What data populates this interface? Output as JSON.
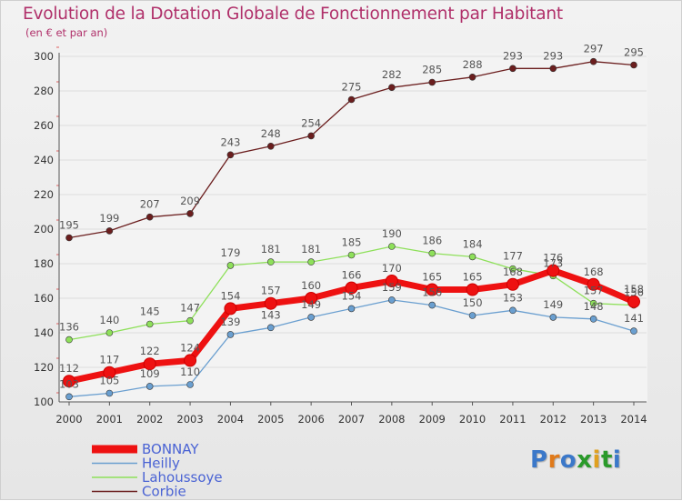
{
  "title": "Evolution de la Dotation Globale de Fonctionnement par Habitant",
  "subtitle": "(en € et par an)",
  "logo": {
    "text": "Proxiti",
    "colors": [
      "#3b78c9",
      "#e07a1a",
      "#3b78c9",
      "#2a9a2a",
      "#e0a020",
      "#2a9a2a",
      "#3b78c9"
    ]
  },
  "colors": {
    "grid": "#dddddd",
    "axis": "#555555",
    "tick_text": "#333333",
    "label_text": "#555555",
    "background": "#f0f0f0"
  },
  "chart_data": {
    "type": "line",
    "title": "Evolution de la Dotation Globale de Fonctionnement par Habitant",
    "xlabel": "",
    "ylabel": "",
    "x": [
      "2000",
      "2001",
      "2002",
      "2003",
      "2004",
      "2005",
      "2006",
      "2007",
      "2008",
      "2009",
      "2010",
      "2011",
      "2012",
      "2013",
      "2014"
    ],
    "ylim": [
      100,
      300
    ],
    "yticks": [
      "100",
      "120",
      "140",
      "160",
      "180",
      "200",
      "220",
      "240",
      "260",
      "280",
      "300"
    ],
    "legend_position": "bottom-left",
    "series": [
      {
        "name": "Corbie",
        "color": "#6b1e1e",
        "width": 1.3,
        "marker": 3.5,
        "values": [
          195,
          199,
          207,
          209,
          243,
          248,
          254,
          275,
          282,
          285,
          288,
          293,
          293,
          297,
          295
        ],
        "labels": [
          "195",
          "199",
          "207",
          "209",
          "243",
          "248",
          "254",
          "275",
          "282",
          "285",
          "288",
          "293",
          "293",
          "297",
          "295"
        ]
      },
      {
        "name": "Lahoussoye",
        "color": "#8ee05a",
        "width": 1.3,
        "marker": 3.5,
        "values": [
          136,
          140,
          145,
          147,
          179,
          181,
          181,
          185,
          190,
          186,
          184,
          177,
          173,
          157,
          156
        ],
        "labels": [
          "136",
          "140",
          "145",
          "147",
          "179",
          "181",
          "181",
          "185",
          "190",
          "186",
          "184",
          "177",
          "173",
          "157",
          "156"
        ]
      },
      {
        "name": "Heilly",
        "color": "#6a9fd0",
        "width": 1.3,
        "marker": 3.5,
        "values": [
          103,
          105,
          109,
          110,
          139,
          143,
          149,
          154,
          159,
          156,
          150,
          153,
          149,
          148,
          141
        ],
        "labels": [
          "103",
          "105",
          "109",
          "110",
          "139",
          "143",
          "149",
          "154",
          "159",
          "156",
          "150",
          "153",
          "149",
          "148",
          "141"
        ]
      },
      {
        "name": "BONNAY",
        "color": "#ee1111",
        "width": 7,
        "marker": 6.5,
        "values": [
          112,
          117,
          122,
          124,
          154,
          157,
          160,
          166,
          170,
          165,
          165,
          168,
          176,
          168,
          158
        ],
        "labels": [
          "112",
          "117",
          "122",
          "124",
          "154",
          "157",
          "160",
          "166",
          "170",
          "165",
          "165",
          "168",
          "176",
          "168",
          "158"
        ]
      }
    ],
    "legend": [
      "BONNAY",
      "Heilly",
      "Lahoussoye",
      "Corbie"
    ]
  }
}
